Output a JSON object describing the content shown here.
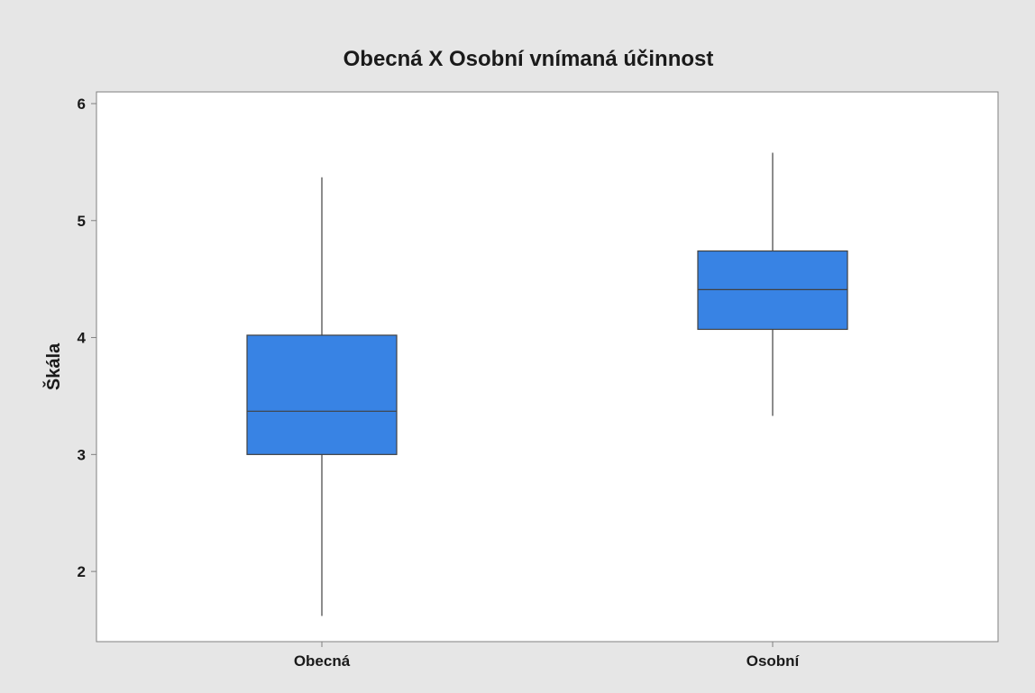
{
  "colors": {
    "outer_background": "#e6e6e6",
    "plot_background": "#ffffff",
    "box_fill": "#3883e4",
    "box_stroke": "#404040",
    "axis": "#808080"
  },
  "chart_data": {
    "type": "box",
    "title": "Obecná X Osobní vnímaná účinnost",
    "xlabel": "",
    "ylabel": "Škála",
    "ylim": [
      1.4,
      6.1
    ],
    "yticks": [
      2,
      3,
      4,
      5,
      6
    ],
    "grid": false,
    "categories": [
      "Obecná",
      "Osobní"
    ],
    "boxes": [
      {
        "category": "Obecná",
        "min": 1.62,
        "q1": 3.0,
        "median": 3.37,
        "q3": 4.02,
        "max": 5.37
      },
      {
        "category": "Osobní",
        "min": 3.33,
        "q1": 4.07,
        "median": 4.41,
        "q3": 4.74,
        "max": 5.58
      }
    ]
  }
}
